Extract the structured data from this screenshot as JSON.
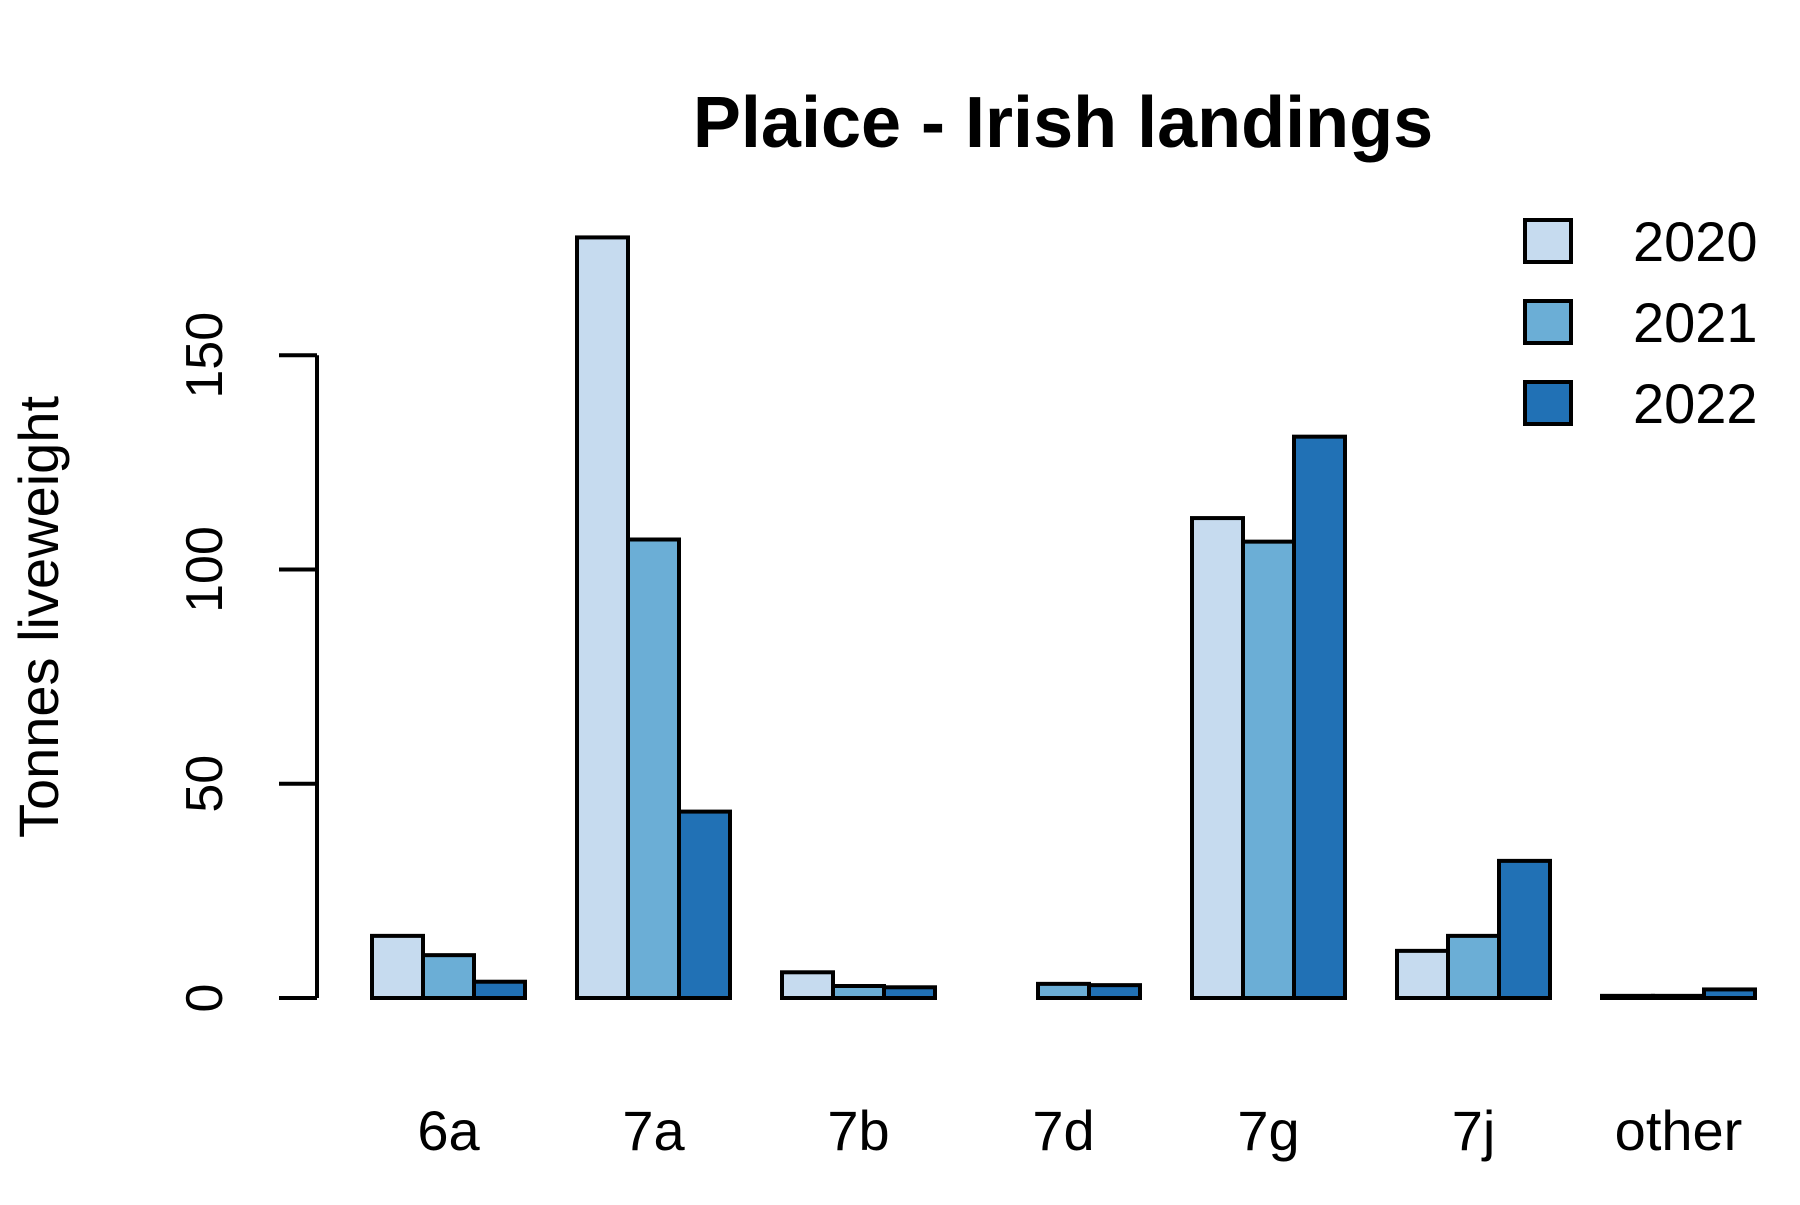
{
  "chart_data": {
    "type": "bar",
    "title": "Plaice - Irish landings",
    "xlabel": "",
    "ylabel": "Tonnes liveweight",
    "categories": [
      "6a",
      "7a",
      "7b",
      "7d",
      "7g",
      "7j",
      "other"
    ],
    "series": [
      {
        "name": "2020",
        "color": "#c6dbef",
        "values": [
          14.5,
          177.5,
          6,
          0,
          112,
          11,
          0.5
        ]
      },
      {
        "name": "2021",
        "color": "#6baed6",
        "values": [
          10,
          107,
          2.8,
          3.3,
          106.5,
          14.5,
          0.5
        ]
      },
      {
        "name": "2022",
        "color": "#2171b5",
        "values": [
          3.8,
          43.5,
          2.5,
          3,
          131,
          32,
          2
        ]
      }
    ],
    "ylim": [
      0,
      180
    ],
    "yticks": [
      0,
      50,
      100,
      150
    ],
    "grid": false,
    "legend_position": "top-right"
  }
}
